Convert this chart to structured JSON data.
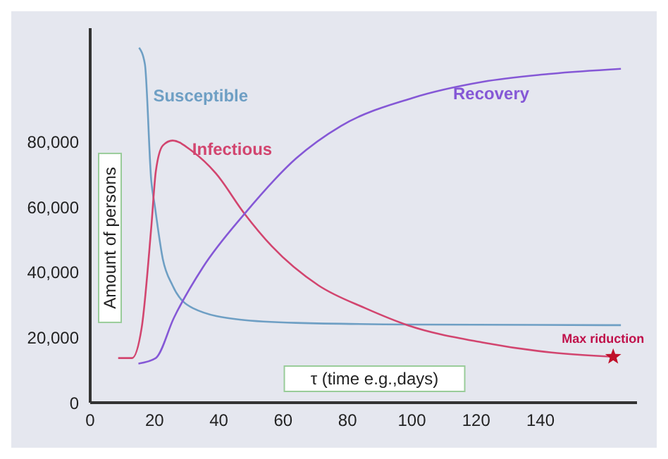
{
  "chart_data": {
    "type": "line",
    "xlabel": "τ (time e.g.,days)",
    "ylabel": "Amount of persons",
    "xlim": [
      0,
      170
    ],
    "ylim": [
      0,
      115000
    ],
    "xticks": [
      0,
      20,
      40,
      60,
      80,
      100,
      120,
      140
    ],
    "yticks": [
      0,
      {
        "value": 20000,
        "label": "20,000"
      },
      {
        "value": 40000,
        "label": "40,000"
      },
      {
        "value": 60000,
        "label": "60,000"
      },
      {
        "value": 80000,
        "label": "80,000"
      }
    ],
    "grid": false,
    "legend": false,
    "marker": "none",
    "line_style": "solid",
    "series": [
      {
        "name": "Susceptible",
        "color": "#6e9fc4",
        "x": [
          15.2,
          17,
          19,
          20,
          22.6,
          25.6,
          32,
          46.5,
          64,
          100,
          165
        ],
        "values": [
          109000,
          104000,
          68000,
          61000,
          44000,
          36000,
          29000,
          25500,
          24500,
          24000,
          23800
        ]
      },
      {
        "name": "Infectious",
        "color": "#d2456f",
        "x": [
          8.7,
          13,
          16,
          19,
          20.4,
          22.6,
          25.6,
          32,
          39,
          48,
          56.5,
          71,
          85.6,
          98.7,
          122,
          143.5,
          162.6
        ],
        "values": [
          13700,
          13700,
          23000,
          54000,
          71000,
          79000,
          80500,
          77000,
          70500,
          58000,
          48000,
          36000,
          29000,
          23800,
          18500,
          15400,
          14100
        ]
      },
      {
        "name": "Recovery",
        "color": "#8558d6",
        "x": [
          15,
          20.4,
          26,
          35,
          48,
          64,
          78,
          100,
          122,
          143.5,
          165
        ],
        "values": [
          12000,
          13700,
          26000,
          41500,
          58000,
          75000,
          85000,
          93500,
          98500,
          101000,
          102500
        ]
      }
    ],
    "annotations": [
      {
        "text": "Max riduction",
        "x": 162.6,
        "y": 14100
      }
    ]
  }
}
